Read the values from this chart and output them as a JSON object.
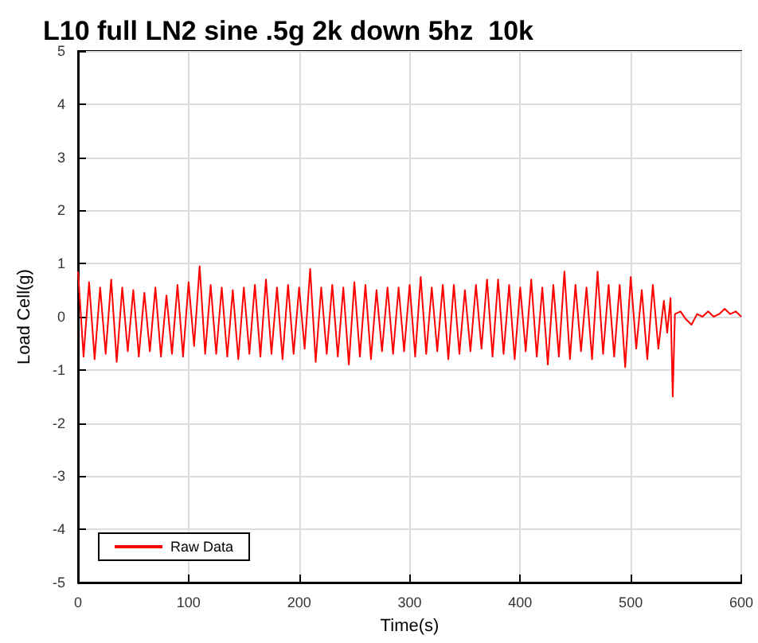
{
  "chart_data": {
    "type": "line",
    "title": "L10 full LN2 sine .5g 2k down 5hz  10k",
    "xlabel": "Time(s)",
    "ylabel": "Load Cell(g)",
    "series": [
      {
        "name": "Raw Data",
        "color": "#ff0000",
        "x": [
          0,
          5,
          10,
          15,
          20,
          25,
          30,
          35,
          40,
          45,
          50,
          55,
          60,
          65,
          70,
          75,
          80,
          85,
          90,
          95,
          100,
          105,
          110,
          115,
          120,
          125,
          130,
          135,
          140,
          145,
          150,
          155,
          160,
          165,
          170,
          175,
          180,
          185,
          190,
          195,
          200,
          205,
          210,
          215,
          220,
          225,
          230,
          235,
          240,
          245,
          250,
          255,
          260,
          265,
          270,
          275,
          280,
          285,
          290,
          295,
          300,
          305,
          310,
          315,
          320,
          325,
          330,
          335,
          340,
          345,
          350,
          355,
          360,
          365,
          370,
          375,
          380,
          385,
          390,
          395,
          400,
          405,
          410,
          415,
          420,
          425,
          430,
          435,
          440,
          445,
          450,
          455,
          460,
          465,
          470,
          475,
          480,
          485,
          490,
          495,
          500,
          505,
          510,
          515,
          520,
          525,
          530,
          533,
          536,
          538,
          540,
          545,
          550,
          555,
          560,
          565,
          570,
          575,
          580,
          585,
          590,
          595,
          600
        ],
        "values": [
          0.85,
          -0.75,
          0.65,
          -0.8,
          0.55,
          -0.7,
          0.7,
          -0.85,
          0.55,
          -0.65,
          0.5,
          -0.75,
          0.45,
          -0.65,
          0.55,
          -0.75,
          0.4,
          -0.7,
          0.6,
          -0.75,
          0.65,
          -0.55,
          0.95,
          -0.7,
          0.6,
          -0.7,
          0.55,
          -0.75,
          0.5,
          -0.8,
          0.55,
          -0.7,
          0.6,
          -0.75,
          0.7,
          -0.7,
          0.55,
          -0.8,
          0.6,
          -0.7,
          0.55,
          -0.6,
          0.9,
          -0.85,
          0.55,
          -0.7,
          0.6,
          -0.75,
          0.55,
          -0.9,
          0.65,
          -0.75,
          0.6,
          -0.8,
          0.5,
          -0.65,
          0.55,
          -0.7,
          0.55,
          -0.65,
          0.6,
          -0.75,
          0.75,
          -0.7,
          0.55,
          -0.65,
          0.6,
          -0.8,
          0.6,
          -0.7,
          0.5,
          -0.65,
          0.6,
          -0.6,
          0.7,
          -0.75,
          0.7,
          -0.7,
          0.6,
          -0.8,
          0.55,
          -0.65,
          0.7,
          -0.75,
          0.55,
          -0.9,
          0.6,
          -0.75,
          0.85,
          -0.8,
          0.6,
          -0.65,
          0.55,
          -0.8,
          0.85,
          -0.7,
          0.6,
          -0.75,
          0.6,
          -0.95,
          0.75,
          -0.6,
          0.5,
          -0.8,
          0.6,
          -0.6,
          0.3,
          -0.3,
          0.35,
          -1.5,
          0.05,
          0.1,
          -0.05,
          -0.15,
          0.05,
          0.0,
          0.1,
          0.0,
          0.05,
          0.15,
          0.05,
          0.1,
          0.0
        ]
      }
    ],
    "xlim": [
      0,
      600
    ],
    "xticks": [
      0,
      100,
      200,
      300,
      400,
      500,
      600
    ],
    "ylim": [
      -5,
      5
    ],
    "yticks": [
      -5,
      -4,
      -3,
      -2,
      -1,
      0,
      1,
      2,
      3,
      4,
      5
    ],
    "grid": true,
    "legend": "bottom left",
    "marker": "none",
    "line_style": "solid"
  }
}
